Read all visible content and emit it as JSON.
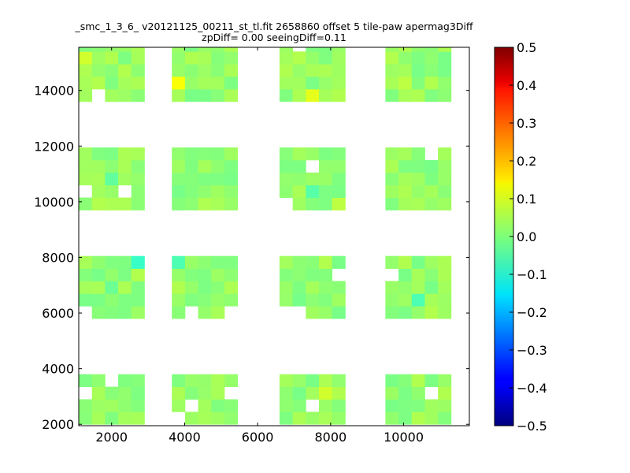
{
  "chart_data": {
    "type": "heatmap",
    "title": "_smc_1_3_6_ v20121125_00211_st_tl.fit 2658860 offset 5 tile-paw apermag3Diff",
    "subtitle": "zpDiff= 0.00 seeingDiff=0.11",
    "xlabel": "",
    "ylabel": "",
    "xlim": [
      1100,
      11800
    ],
    "ylim": [
      1950,
      15550
    ],
    "x_ticks": [
      2000,
      4000,
      6000,
      8000,
      10000
    ],
    "y_ticks": [
      2000,
      4000,
      6000,
      8000,
      10000,
      12000,
      14000
    ],
    "x_tick_labels": [
      "2000",
      "4000",
      "6000",
      "8000",
      "10000"
    ],
    "y_tick_labels": [
      "2000",
      "4000",
      "6000",
      "8000",
      "10000",
      "12000",
      "14000"
    ],
    "colorbar": {
      "min": -0.5,
      "max": 0.5,
      "ticks": [
        0.5,
        0.4,
        0.3,
        0.2,
        0.1,
        0.0,
        -0.1,
        -0.2,
        -0.3,
        -0.4,
        -0.5
      ],
      "tick_labels": [
        "0.5",
        "0.4",
        "0.3",
        "0.2",
        "0.1",
        "0.0",
        "−0.1",
        "−0.2",
        "−0.3",
        "−0.4",
        "−0.5"
      ],
      "colormap": "jet"
    },
    "cell_size": {
      "dx": 360,
      "dy": 450
    },
    "default_value": 0.02,
    "tiles": [
      {
        "x0": 1100,
        "cols": 5,
        "y0": 2000,
        "rows": 4
      },
      {
        "x0": 3650,
        "cols": 5,
        "y0": 2000,
        "rows": 4
      },
      {
        "x0": 6600,
        "cols": 5,
        "y0": 2000,
        "rows": 4
      },
      {
        "x0": 9500,
        "cols": 5,
        "y0": 2000,
        "rows": 4
      },
      {
        "x0": 1100,
        "cols": 5,
        "y0": 5800,
        "rows": 5
      },
      {
        "x0": 3650,
        "cols": 5,
        "y0": 5800,
        "rows": 5
      },
      {
        "x0": 6600,
        "cols": 5,
        "y0": 5800,
        "rows": 5
      },
      {
        "x0": 9500,
        "cols": 5,
        "y0": 5800,
        "rows": 5
      },
      {
        "x0": 1100,
        "cols": 5,
        "y0": 9700,
        "rows": 5
      },
      {
        "x0": 3650,
        "cols": 5,
        "y0": 9700,
        "rows": 5
      },
      {
        "x0": 6600,
        "cols": 5,
        "y0": 9700,
        "rows": 5
      },
      {
        "x0": 9500,
        "cols": 5,
        "y0": 9700,
        "rows": 5
      },
      {
        "x0": 1100,
        "cols": 5,
        "y0": 13600,
        "rows": 5
      },
      {
        "x0": 3650,
        "cols": 5,
        "y0": 13600,
        "rows": 5
      },
      {
        "x0": 6600,
        "cols": 5,
        "y0": 13600,
        "rows": 5
      },
      {
        "x0": 9500,
        "cols": 5,
        "y0": 13600,
        "rows": 5
      }
    ],
    "value_overrides": [
      {
        "x": 1900,
        "y": 3800,
        "value": -0.09
      },
      {
        "x": 3880,
        "y": 3800,
        "value": 0.13
      },
      {
        "x": 10550,
        "y": 3800,
        "value": -0.05
      },
      {
        "x": 7900,
        "y": 2900,
        "value": 0.08
      },
      {
        "x": 8450,
        "y": 2200,
        "value": 0.08
      },
      {
        "x": 2850,
        "y": 7650,
        "value": -0.07
      },
      {
        "x": 3880,
        "y": 7650,
        "value": -0.05
      },
      {
        "x": 5800,
        "y": 7650,
        "value": -0.04
      },
      {
        "x": 2000,
        "y": 6700,
        "value": -0.02
      },
      {
        "x": 10550,
        "y": 6350,
        "value": -0.05
      },
      {
        "x": 10550,
        "y": 5500,
        "value": -0.06
      },
      {
        "x": 4800,
        "y": 5500,
        "value": 0.09
      },
      {
        "x": 1900,
        "y": 10950,
        "value": -0.03
      },
      {
        "x": 7600,
        "y": 10300,
        "value": -0.04
      },
      {
        "x": 8250,
        "y": 9950,
        "value": 0.06
      },
      {
        "x": 8950,
        "y": 11100,
        "value": -0.03
      },
      {
        "x": 3880,
        "y": 14400,
        "value": 0.12
      },
      {
        "x": 1250,
        "y": 15200,
        "value": 0.08
      },
      {
        "x": 7600,
        "y": 13800,
        "value": 0.1
      },
      {
        "x": 8950,
        "y": 15400,
        "value": -0.08
      },
      {
        "x": 10000,
        "y": 14200,
        "value": 0.06
      }
    ],
    "missing_cells": [
      {
        "x": 1400,
        "y": 3000
      },
      {
        "x": 1900,
        "y": 3500
      },
      {
        "x": 3880,
        "y": 2200
      },
      {
        "x": 4200,
        "y": 2500
      },
      {
        "x": 5100,
        "y": 3200
      },
      {
        "x": 5800,
        "y": 3900
      },
      {
        "x": 6950,
        "y": 3900
      },
      {
        "x": 7600,
        "y": 2500
      },
      {
        "x": 8250,
        "y": 3900
      },
      {
        "x": 8950,
        "y": 2200
      },
      {
        "x": 10900,
        "y": 2900
      },
      {
        "x": 1250,
        "y": 6000
      },
      {
        "x": 4200,
        "y": 6000
      },
      {
        "x": 5300,
        "y": 6000
      },
      {
        "x": 6950,
        "y": 6000
      },
      {
        "x": 7300,
        "y": 6000
      },
      {
        "x": 8250,
        "y": 7400
      },
      {
        "x": 9850,
        "y": 7400
      },
      {
        "x": 1400,
        "y": 10300
      },
      {
        "x": 2200,
        "y": 10300
      },
      {
        "x": 3000,
        "y": 11600
      },
      {
        "x": 6950,
        "y": 9850
      },
      {
        "x": 7600,
        "y": 11100
      },
      {
        "x": 10900,
        "y": 11600
      },
      {
        "x": 1600,
        "y": 13800
      },
      {
        "x": 3000,
        "y": 15400
      },
      {
        "x": 7300,
        "y": 15400
      },
      {
        "x": 11300,
        "y": 15000
      }
    ]
  }
}
